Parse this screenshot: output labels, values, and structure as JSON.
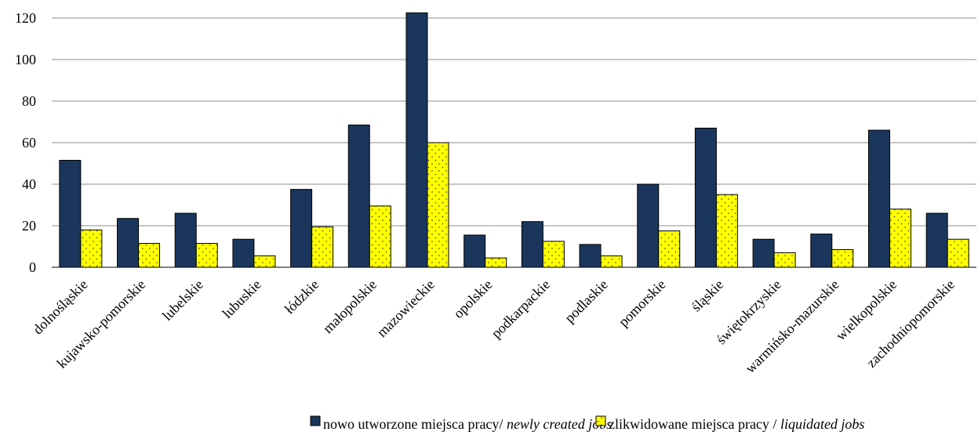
{
  "chart_data": {
    "type": "bar",
    "categories": [
      "dolnośląskie",
      "kujawsko-pomorskie",
      "lubelskie",
      "lubuskie",
      "łódzkie",
      "małopolskie",
      "mazowieckie",
      "opolskie",
      "podkarpackie",
      "podlaskie",
      "pomorskie",
      "śląskie",
      "świętokrzyskie",
      "warmińsko-mazurskie",
      "wielkopolskie",
      "zachodniopomorskie"
    ],
    "series": [
      {
        "name": "nowo utworzone miejsca pracy",
        "name_en": "newly created jobs",
        "color": "#1b365d",
        "pattern": "solid",
        "values": [
          51.5,
          23.5,
          26,
          13.5,
          37.5,
          68.5,
          122.5,
          15.5,
          22,
          11,
          40,
          67,
          13.5,
          16,
          66,
          26
        ]
      },
      {
        "name": "zlikwidowane miejsca pracy",
        "name_en": "liquidated jobs",
        "color": "#ffff00",
        "pattern": "dotted",
        "values": [
          18,
          11.5,
          11.5,
          5.5,
          19.5,
          29.5,
          60,
          4.5,
          12.5,
          5.5,
          17.5,
          35,
          7,
          8.5,
          28,
          13.5
        ]
      }
    ],
    "yticks": [
      0,
      20,
      40,
      60,
      80,
      100,
      120
    ],
    "ylim": [
      0,
      123
    ],
    "grid": true,
    "legend_position": "bottom"
  },
  "legend": {
    "items": [
      {
        "label_pl": "nowo utworzone miejsca pracy",
        "separator": "/ ",
        "label_en": "newly created jobs"
      },
      {
        "label_pl": "zlikwidowane miejsca pracy",
        "separator": " / ",
        "label_en": "liquidated jobs"
      }
    ]
  }
}
